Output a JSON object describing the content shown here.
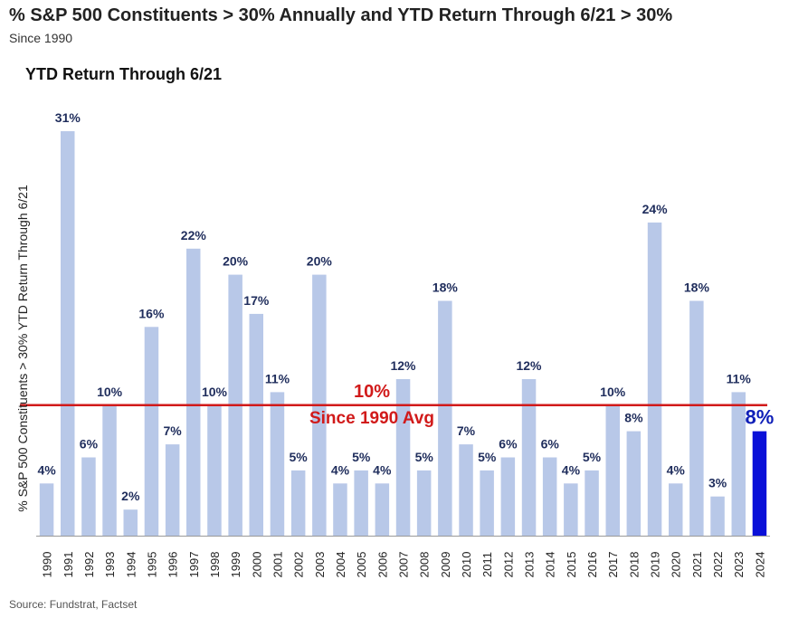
{
  "title": "% S&P 500 Constituents > 30% Annually and YTD Return Through 6/21 > 30%",
  "subtitle": "Since 1990",
  "chart_heading": "YTD Return Through 6/21",
  "source": "Source: Fundstrat, Factset",
  "chart_data": {
    "type": "bar",
    "ylabel": "% S&P 500 Constituents > 30% YTD Return Through 6/21",
    "categories": [
      "1990",
      "1991",
      "1992",
      "1993",
      "1994",
      "1995",
      "1996",
      "1997",
      "1998",
      "1999",
      "2000",
      "2001",
      "2002",
      "2003",
      "2004",
      "2005",
      "2006",
      "2007",
      "2008",
      "2009",
      "2010",
      "2011",
      "2012",
      "2013",
      "2014",
      "2015",
      "2016",
      "2017",
      "2018",
      "2019",
      "2020",
      "2021",
      "2022",
      "2023",
      "2024"
    ],
    "values": [
      4,
      31,
      6,
      10,
      2,
      16,
      7,
      22,
      10,
      20,
      17,
      11,
      5,
      20,
      4,
      5,
      4,
      12,
      5,
      18,
      7,
      5,
      6,
      12,
      6,
      4,
      5,
      10,
      8,
      24,
      4,
      18,
      3,
      11,
      8
    ],
    "labels": [
      "4%",
      "31%",
      "6%",
      "10%",
      "2%",
      "16%",
      "7%",
      "22%",
      "10%",
      "20%",
      "17%",
      "11%",
      "5%",
      "20%",
      "4%",
      "5%",
      "4%",
      "12%",
      "5%",
      "18%",
      "7%",
      "5%",
      "6%",
      "12%",
      "6%",
      "4%",
      "5%",
      "10%",
      "8%",
      "24%",
      "4%",
      "18%",
      "3%",
      "11%",
      "8%"
    ],
    "ylim": [
      0,
      31
    ],
    "grid": false,
    "colors": {
      "bar": "#b8c8e8",
      "highlight": "#0a10d8",
      "average_line": "#d11a1a"
    },
    "average": {
      "value": 10,
      "label_value": "10%",
      "label_text": "Since 1990 Avg"
    }
  }
}
